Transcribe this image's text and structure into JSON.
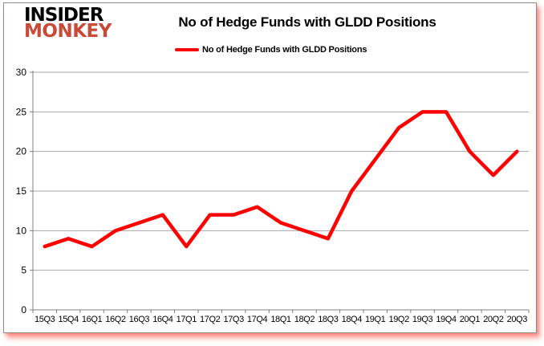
{
  "logo": {
    "top": "INSIDER",
    "bottom": "MONKEY"
  },
  "header": {
    "title": "No of Hedge Funds with GLDD Positions"
  },
  "legend": {
    "label": "No of Hedge Funds with GLDD Positions"
  },
  "chart_data": {
    "type": "line",
    "title": "No of Hedge Funds with GLDD Positions",
    "series_name": "No of Hedge Funds with GLDD Positions",
    "categories": [
      "15Q3",
      "15Q4",
      "16Q1",
      "16Q2",
      "16Q3",
      "16Q4",
      "17Q1",
      "17Q2",
      "17Q3",
      "17Q4",
      "18Q1",
      "18Q2",
      "18Q3",
      "18Q4",
      "19Q1",
      "19Q2",
      "19Q3",
      "19Q4",
      "20Q1",
      "20Q2",
      "20Q3"
    ],
    "values": [
      8,
      9,
      8,
      10,
      11,
      12,
      8,
      12,
      12,
      13,
      11,
      10,
      9,
      15,
      19,
      23,
      25,
      25,
      20,
      17,
      20
    ],
    "xlabel": "",
    "ylabel": "",
    "ylim": [
      0,
      30
    ],
    "yticks": [
      0,
      5,
      10,
      15,
      20,
      25,
      30
    ],
    "grid": true,
    "legend_position": "top-center"
  },
  "colors": {
    "line": "#ff0000",
    "grid": "#a6a6a6",
    "axis": "#808080",
    "text": "#000000",
    "monkey_red": "#c84a38",
    "frame_border": "#8c8c8c",
    "shadow_red": "#f9564b"
  }
}
